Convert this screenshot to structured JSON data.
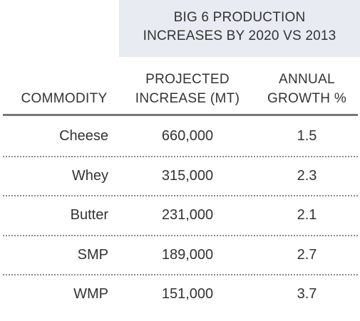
{
  "table": {
    "title_line1": "BIG 6 PRODUCTION",
    "title_line2": "INCREASES BY 2020 VS 2013",
    "headers": {
      "commodity": "COMMODITY",
      "increase_line1": "PROJECTED",
      "increase_line2": "INCREASE (MT)",
      "growth_line1": "ANNUAL",
      "growth_line2": "GROWTH %"
    },
    "banner_color": "#e8ebf2"
  },
  "chart_data": {
    "type": "table",
    "title": "BIG 6 PRODUCTION INCREASES BY 2020 VS 2013",
    "columns": [
      "COMMODITY",
      "PROJECTED INCREASE (MT)",
      "ANNUAL GROWTH %"
    ],
    "rows": [
      [
        "Cheese",
        "660,000",
        "1.5"
      ],
      [
        "Whey",
        "315,000",
        "2.3"
      ],
      [
        "Butter",
        "231,000",
        "2.1"
      ],
      [
        "SMP",
        "189,000",
        "2.7"
      ],
      [
        "WMP",
        "151,000",
        "3.7"
      ]
    ]
  }
}
